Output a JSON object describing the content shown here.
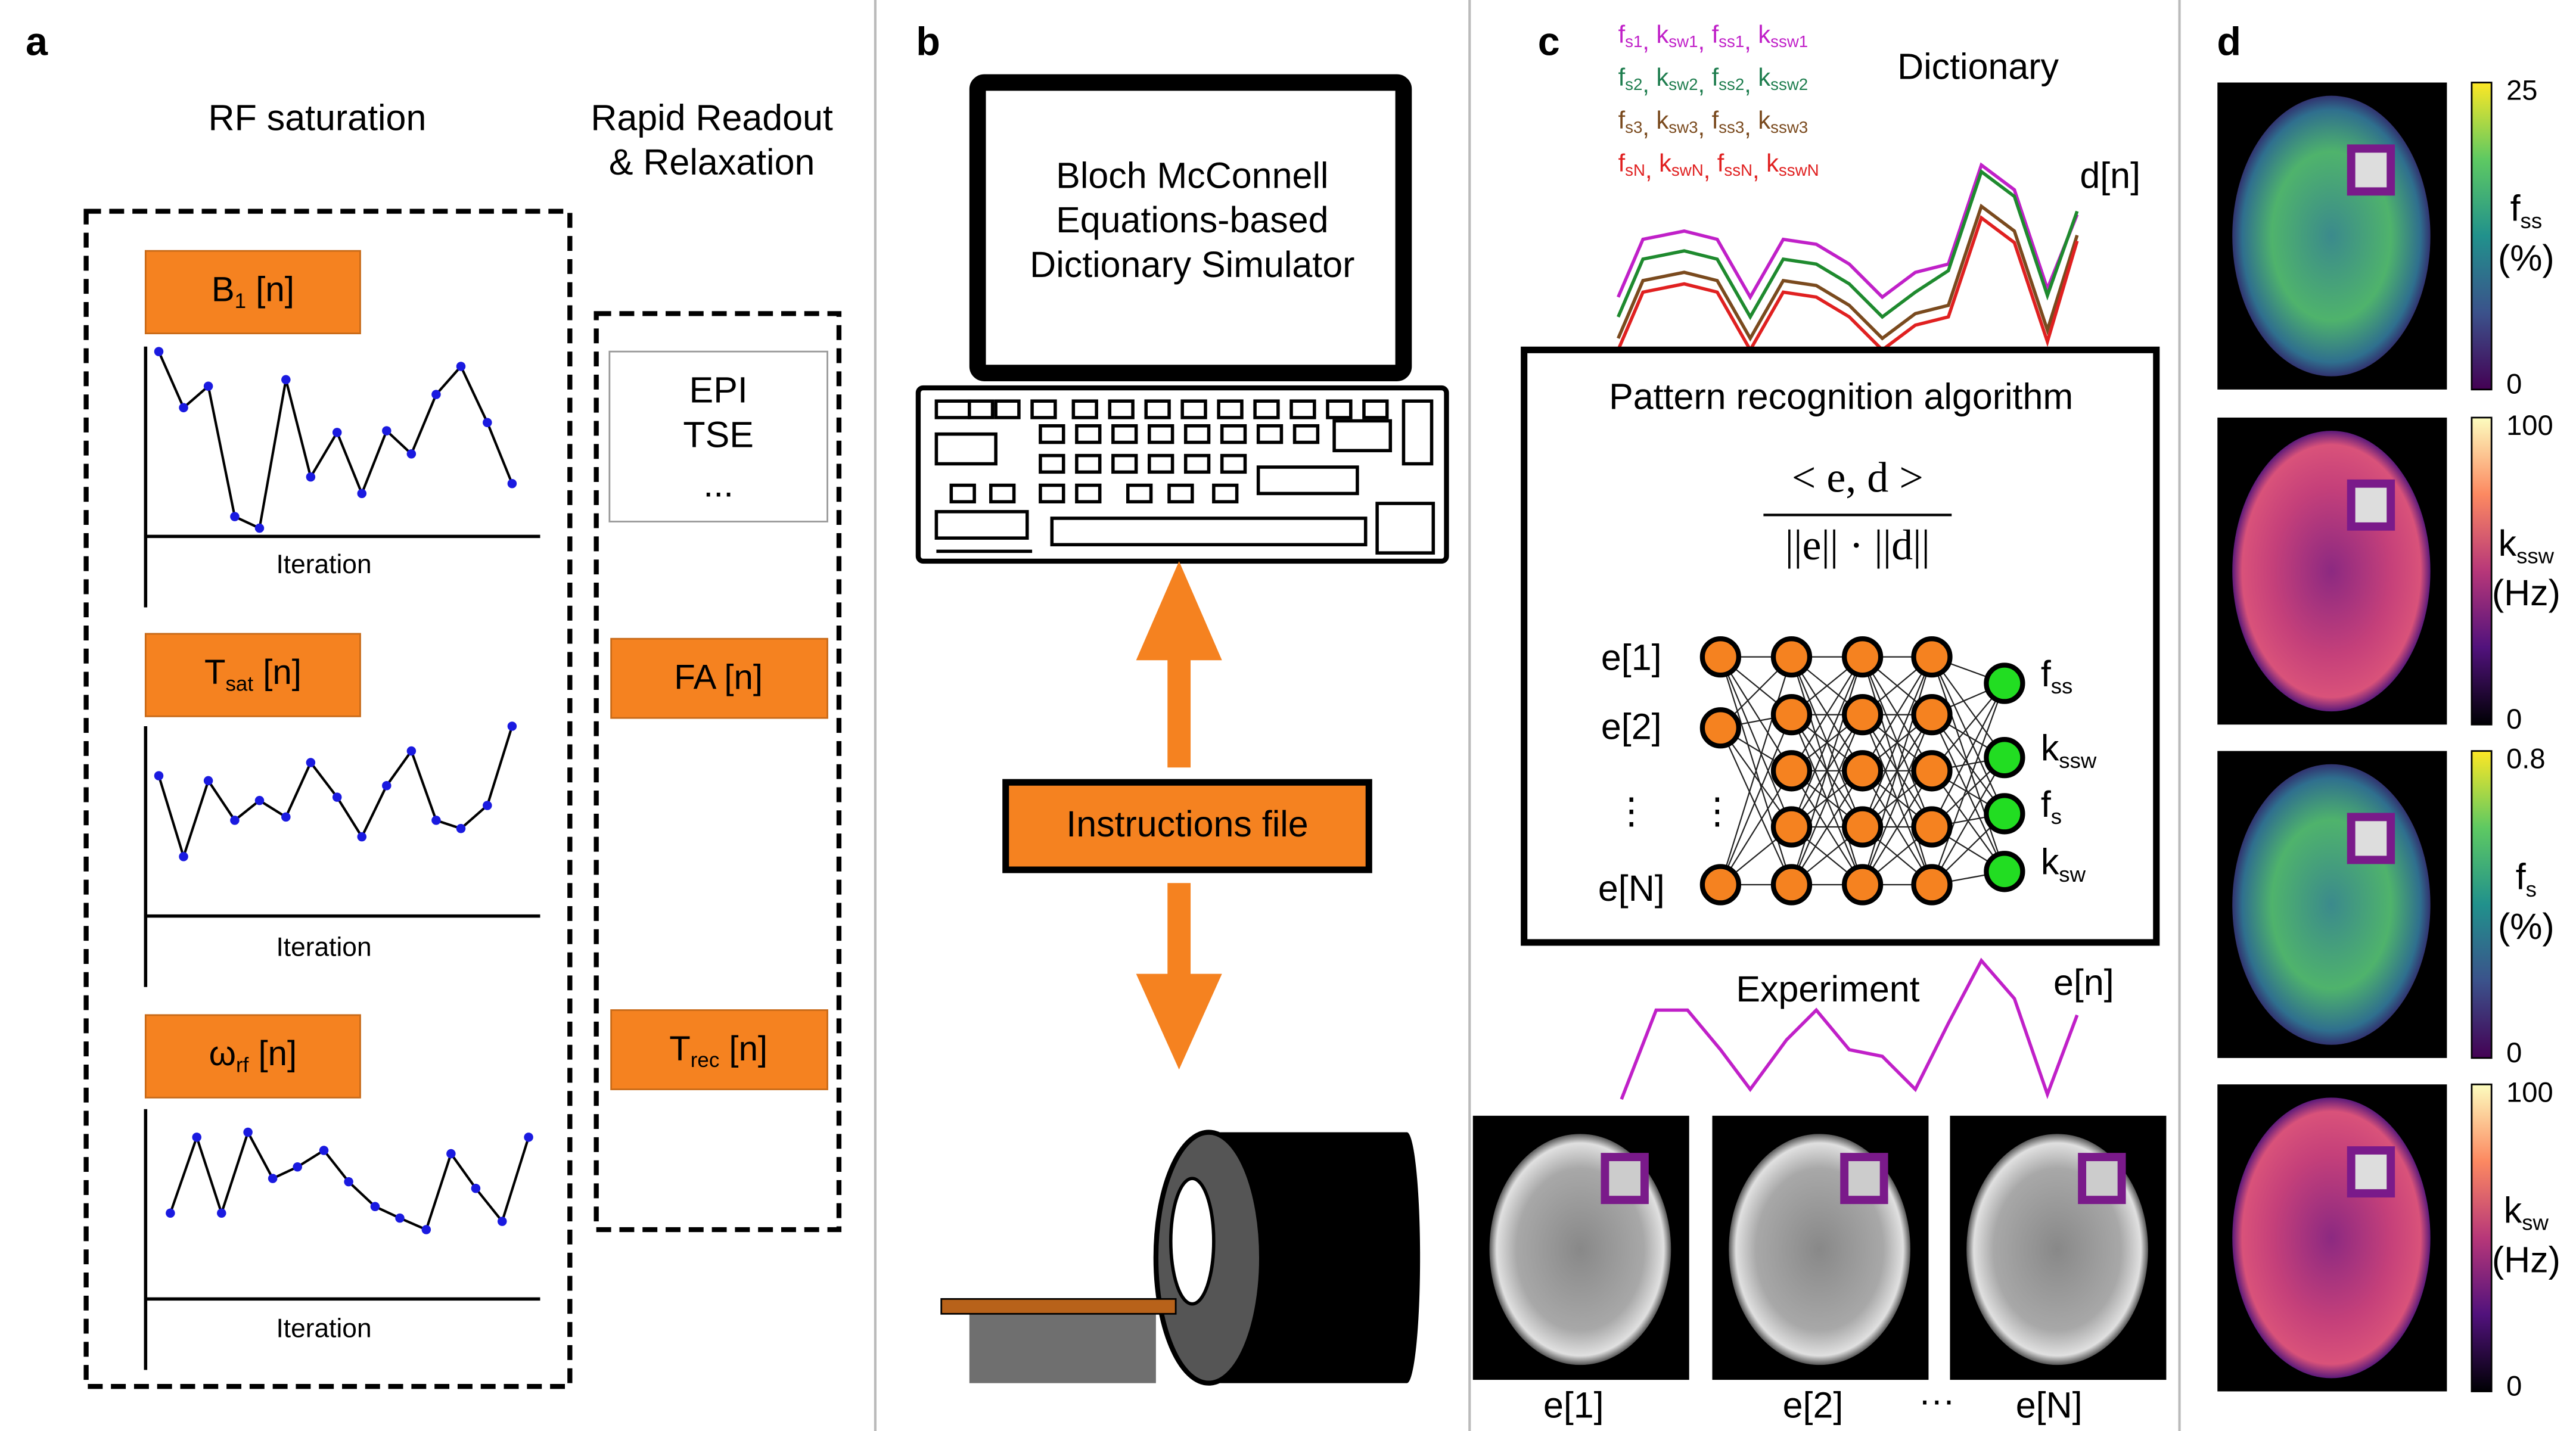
{
  "panels": {
    "a": {
      "letter": "a",
      "heading_left": "RF saturation",
      "heading_right_lines": [
        "Rapid Readout",
        "& Relaxation"
      ],
      "params": [
        {
          "base": "B",
          "sub": "1",
          "rest": " [n]"
        },
        {
          "base": "T",
          "sub": "sat",
          "rest": " [n]"
        },
        {
          "base": "ω",
          "sub": "rf",
          "rest": " [n]"
        }
      ],
      "axis_label": "Iteration",
      "readout_lines": [
        "EPI",
        "TSE",
        "..."
      ],
      "readout_params": [
        {
          "base": "FA [n]"
        },
        {
          "base": "T",
          "sub": "rec",
          "rest": " [n]"
        }
      ]
    },
    "b": {
      "letter": "b",
      "simulator_lines": [
        "Bloch McConnell",
        "Equations-based",
        "Dictionary Simulator"
      ],
      "instructions": "Instructions file"
    },
    "c": {
      "letter": "c",
      "dictionary_title": "Dictionary",
      "separator": ", ",
      "dictionary_rows": [
        {
          "color": "#c020c8",
          "items": [
            {
              "base": "f",
              "sub": "s1"
            },
            {
              "base": "k",
              "sub": "sw1"
            },
            {
              "base": "f",
              "sub": "ss1"
            },
            {
              "base": "k",
              "sub": "ssw1"
            }
          ]
        },
        {
          "color": "#1e7d4e",
          "items": [
            {
              "base": "f",
              "sub": "s2"
            },
            {
              "base": "k",
              "sub": "sw2"
            },
            {
              "base": "f",
              "sub": "ss2"
            },
            {
              "base": "k",
              "sub": "ssw2"
            }
          ]
        },
        {
          "color": "#7a4a1e",
          "items": [
            {
              "base": "f",
              "sub": "s3"
            },
            {
              "base": "k",
              "sub": "sw3"
            },
            {
              "base": "f",
              "sub": "ss3"
            },
            {
              "base": "k",
              "sub": "ssw3"
            }
          ]
        },
        {
          "color": "#e02020",
          "items": [
            {
              "base": "f",
              "sub": "sN"
            },
            {
              "base": "k",
              "sub": "swN"
            },
            {
              "base": "f",
              "sub": "ssN"
            },
            {
              "base": "k",
              "sub": "sswN"
            }
          ]
        }
      ],
      "dictionary_label": "d[n]",
      "algorithm_title": "Pattern recognition algorithm",
      "numerator": "< e, d >",
      "denominator": "||e|| · ||d||",
      "inputs": [
        "e[1]",
        "e[2]",
        "⋮",
        "e[N]"
      ],
      "node_gap": "⋮",
      "outputs": [
        {
          "base": "f",
          "sub": "ss"
        },
        {
          "base": "k",
          "sub": "ssw"
        },
        {
          "base": "f",
          "sub": "s"
        },
        {
          "base": "k",
          "sub": "sw"
        }
      ],
      "experiment_title": "Experiment",
      "experiment_label": "e[n]",
      "image_labels": [
        "e[1]",
        "e[2]",
        "e[N]"
      ],
      "image_ellipsis": "···"
    },
    "d": {
      "letter": "d",
      "maps": [
        {
          "max": "25",
          "min": "0",
          "base": "f",
          "sub": "ss",
          "unit": "(%)",
          "colormap": "viridis"
        },
        {
          "max": "100",
          "min": "0",
          "base": "k",
          "sub": "ssw",
          "unit": "(Hz)",
          "colormap": "magma"
        },
        {
          "max": "0.8",
          "min": "0",
          "base": "f",
          "sub": "s",
          "unit": "(%)",
          "colormap": "viridis"
        },
        {
          "max": "100",
          "min": "0",
          "base": "k",
          "sub": "sw",
          "unit": "(Hz)",
          "colormap": "magma"
        }
      ]
    }
  }
}
